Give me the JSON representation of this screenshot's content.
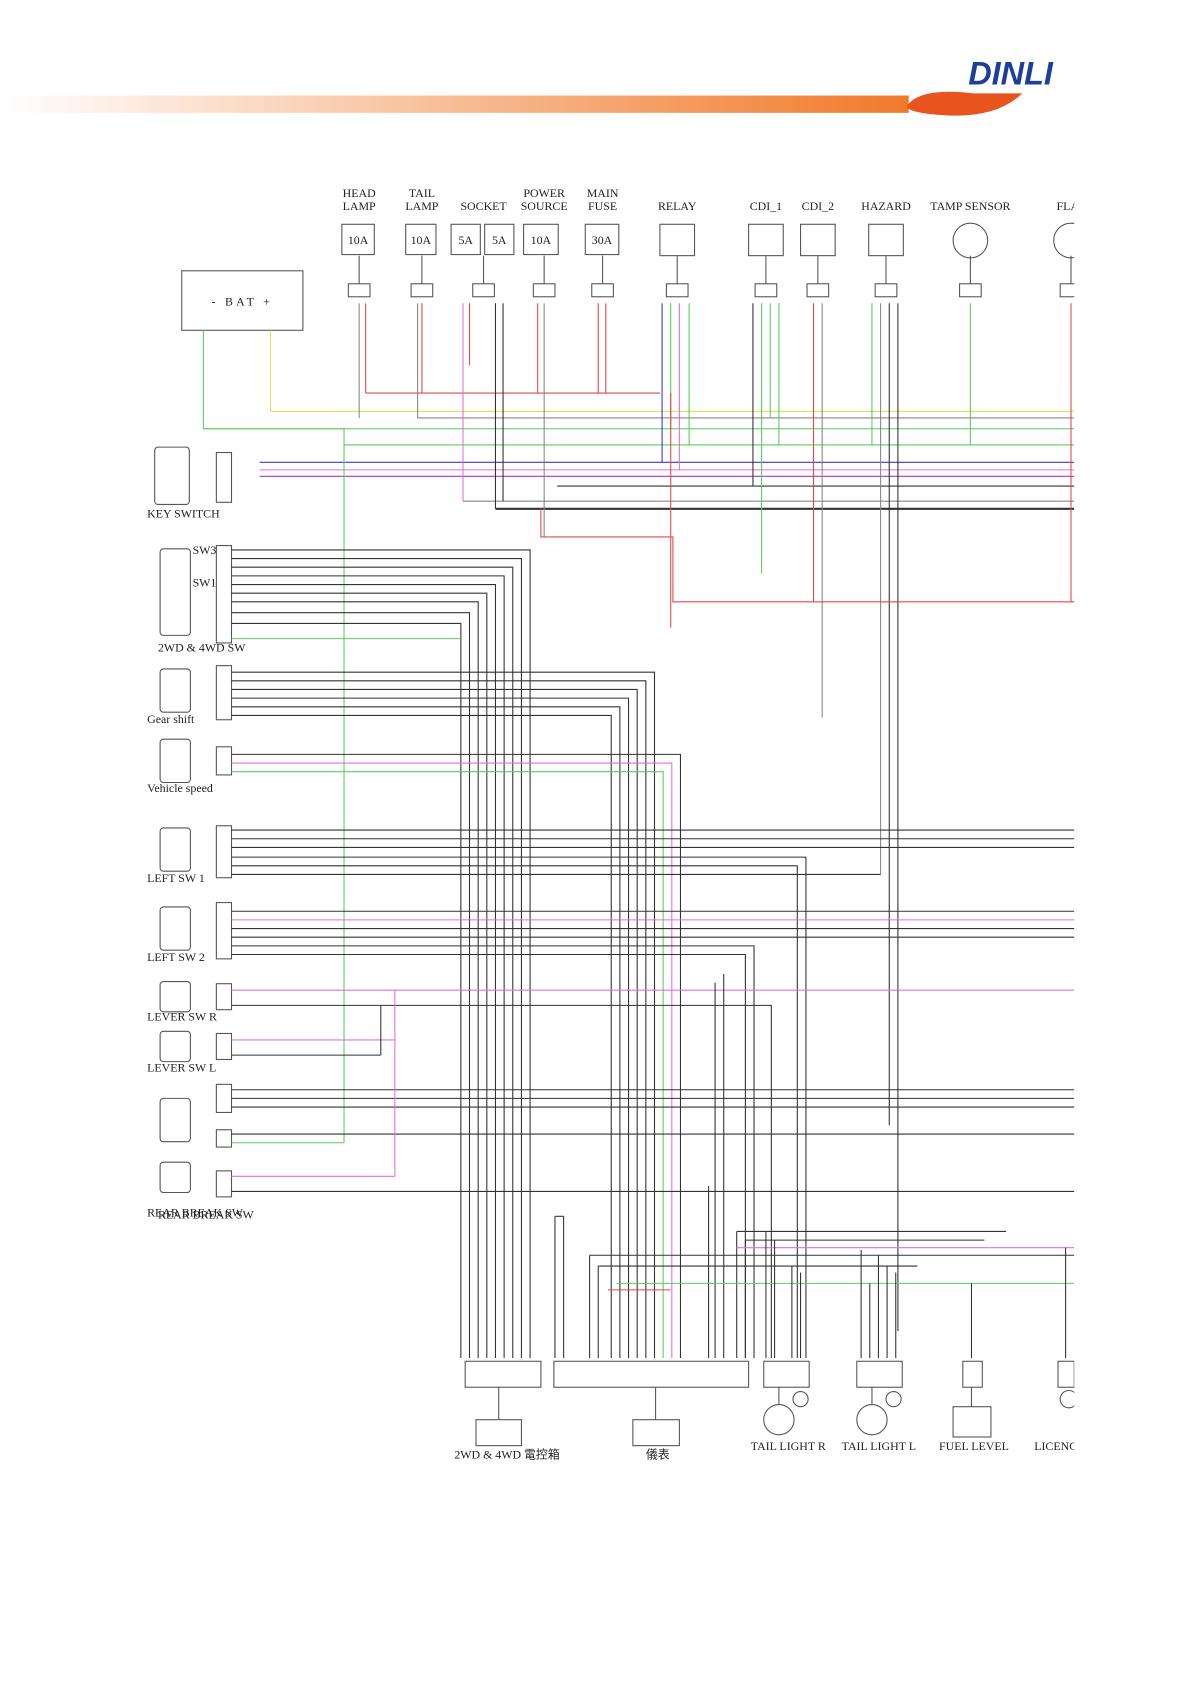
{
  "header": {
    "logo": "DINLI"
  },
  "top_components": [
    {
      "name_lines": [
        "HEAD",
        "LAMP"
      ],
      "ratings": [
        "10A"
      ]
    },
    {
      "name_lines": [
        "TAIL",
        "LAMP"
      ],
      "ratings": [
        "10A"
      ]
    },
    {
      "name_lines": [
        "SOCKET"
      ],
      "ratings": [
        "5A",
        "5A"
      ]
    },
    {
      "name_lines": [
        "POWER",
        "SOURCE"
      ],
      "ratings": [
        "10A"
      ]
    },
    {
      "name_lines": [
        "MAIN",
        "FUSE"
      ],
      "ratings": [
        "30A"
      ]
    },
    {
      "name_lines": [
        "RELAY"
      ],
      "ratings": []
    },
    {
      "name_lines": [
        "CDI_1"
      ],
      "ratings": []
    },
    {
      "name_lines": [
        "CDI_2"
      ],
      "ratings": []
    },
    {
      "name_lines": [
        "HAZARD"
      ],
      "ratings": []
    },
    {
      "name_lines": [
        "TAMP SENSOR"
      ],
      "ratings": []
    },
    {
      "name_lines": [
        "FLAS"
      ],
      "ratings": []
    }
  ],
  "battery": "- BAT +",
  "left_components": [
    "KEY SWITCH",
    "SW3",
    "SW1",
    "2WD & 4WD SW",
    "Gear shift",
    "Vehicle speed",
    "LEFT SW 1",
    "LEFT SW 2",
    "LEVER SW R",
    "LEVER SW L",
    "REAR BREAK SW"
  ],
  "bottom_components": [
    "2WD & 4WD 電控箱",
    "儀表",
    "TAIL LIGHT R",
    "TAIL LIGHT L",
    "FUEL LEVEL",
    "LICENC"
  ]
}
